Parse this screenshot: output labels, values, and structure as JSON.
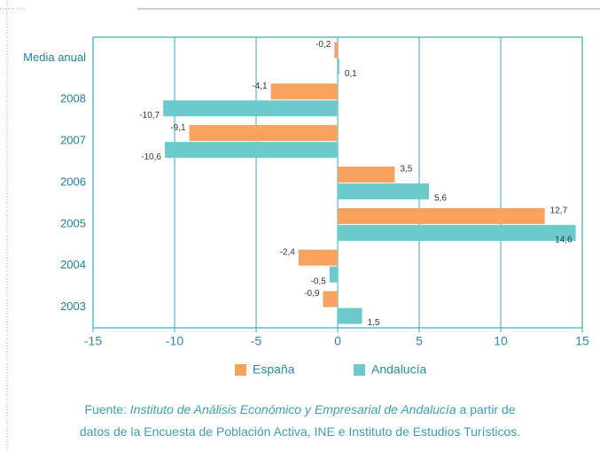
{
  "chart_data": {
    "type": "hbar",
    "categories": [
      "Media anual",
      "2008",
      "2007",
      "2006",
      "2005",
      "2004",
      "2003"
    ],
    "series": [
      {
        "name": "España",
        "color": "#f8a25f",
        "values": [
          -0.2,
          -4.1,
          -9.1,
          3.5,
          12.7,
          -2.4,
          -0.9
        ],
        "value_labels": [
          "-0,2",
          "-4,1",
          "-9,1",
          "3,5",
          "12,7",
          "-2,4",
          "-0,9"
        ]
      },
      {
        "name": "Andalucía",
        "color": "#6ccacd",
        "values": [
          0.1,
          -10.7,
          -10.6,
          5.6,
          14.6,
          -0.5,
          1.5
        ],
        "value_labels": [
          "0,1",
          "-10,7",
          "-10,6",
          "5,6",
          "14,6",
          "-0,5",
          "1,5"
        ]
      }
    ],
    "xlim": [
      -15,
      15
    ],
    "xticks": [
      -15,
      -10,
      -5,
      0,
      5,
      10,
      15
    ],
    "grid": true
  },
  "source": {
    "label": "Fuente:",
    "title": "Instituto de Análisis Económico y Empresarial de Andalucía",
    "line1_end": "a partir de",
    "line2": "datos de la Encuesta de Población Activa, INE e Instituto de Estudios Turísticos."
  }
}
